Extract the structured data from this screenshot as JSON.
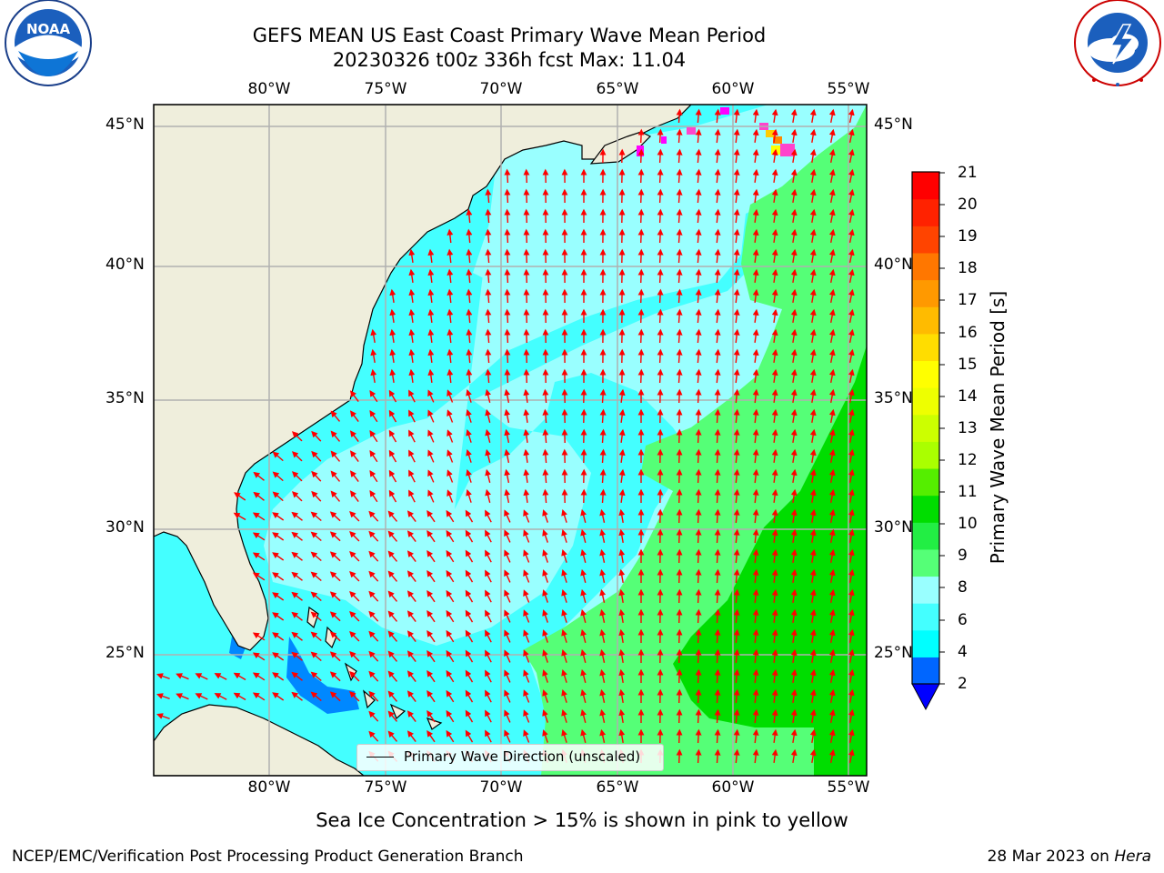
{
  "title": {
    "line1": "GEFS MEAN US East Coast Primary Wave Mean Period",
    "line2": "20230326 t00z 336h fcst   Max: 11.04"
  },
  "map": {
    "lat_labels": [
      "45°N",
      "40°N",
      "35°N",
      "30°N",
      "25°N"
    ],
    "lon_labels": [
      "80°W",
      "75°W",
      "70°W",
      "65°W",
      "60°W",
      "55°W"
    ],
    "land_color": "#efeedc",
    "arrow_color": "#ff0000",
    "grid_color": "#b0b0b0",
    "legend_label": "Primary Wave Direction (unscaled)"
  },
  "colorbar": {
    "label": "Primary Wave Mean Period [s]",
    "ticks": [
      "21",
      "20",
      "19",
      "18",
      "17",
      "16",
      "15",
      "14",
      "13",
      "12",
      "11",
      "10",
      "9",
      "8",
      "6",
      "4",
      "2"
    ],
    "colors_low_to_high": [
      "#0066ff",
      "#00ffff",
      "#44ffff",
      "#99ffff",
      "#55ff77",
      "#22ee44",
      "#00dd00",
      "#55ee00",
      "#aaff00",
      "#ccff00",
      "#eeff00",
      "#ffff00",
      "#ffdd00",
      "#ffbb00",
      "#ff9900",
      "#ff7700",
      "#ff4400",
      "#ff2200",
      "#ff0000"
    ],
    "under_color": "#0000ff"
  },
  "note": "Sea Ice Concentration > 15% is shown in pink to yellow",
  "footer": {
    "left": "NCEP/EMC/Verification Post Processing Product Generation Branch",
    "right_date": "28 Mar 2023 on",
    "right_host": "Hera"
  },
  "logos": {
    "noaa": "NOAA",
    "noaa_ring": "NATIONAL OCEANIC AND ATMOSPHERIC ADMINISTRATION · U.S. DEPARTMENT OF COMMERCE",
    "nws_ring": "NATIONAL WEATHER SERVICE"
  }
}
